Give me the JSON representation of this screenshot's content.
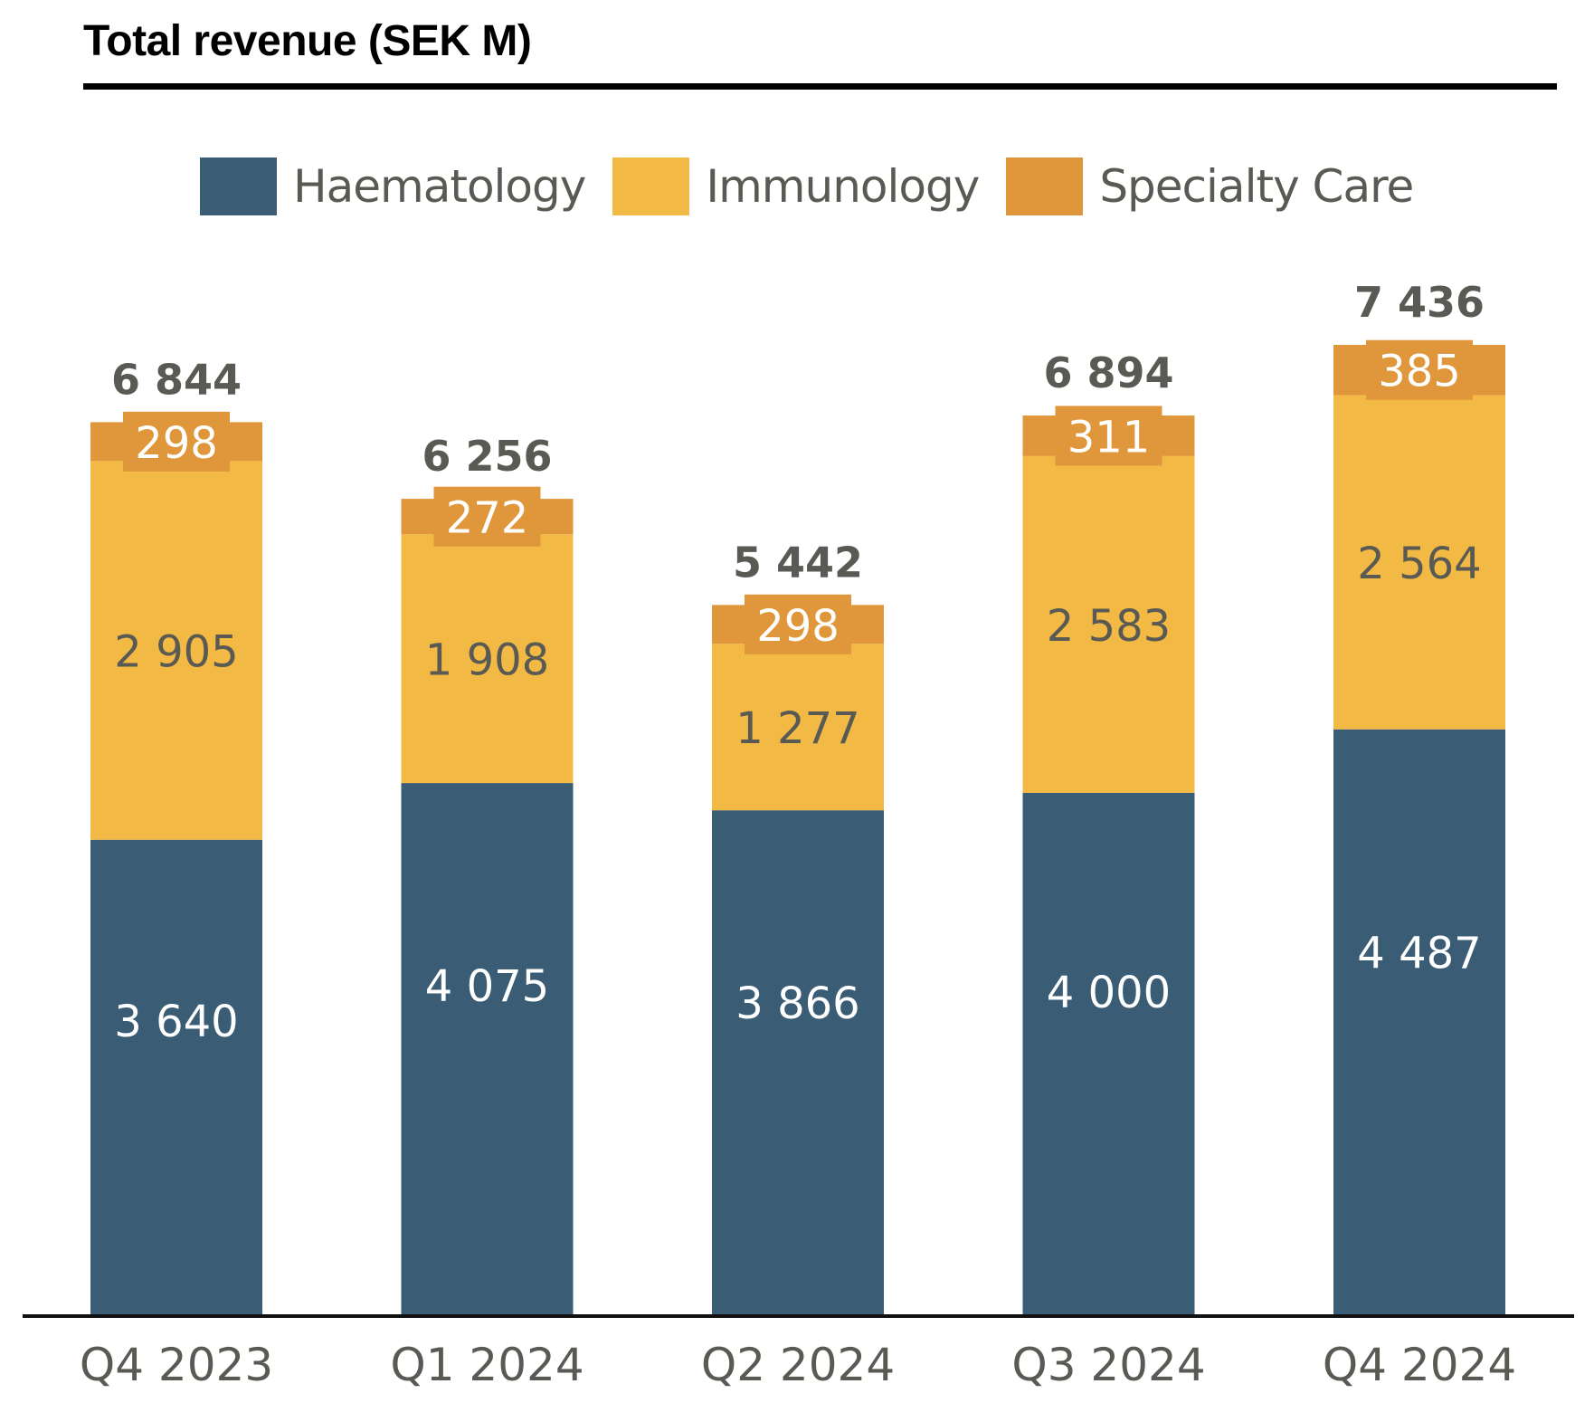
{
  "title": "Total revenue (SEK M)",
  "colors": {
    "haematology": "#3A5D75",
    "immunology": "#F2B944",
    "specialty_care": "#E0963A",
    "label_dark": "#5A5A55",
    "label_light": "#FFFFFF"
  },
  "legend": [
    {
      "label": "Haematology",
      "color": "#3A5D75"
    },
    {
      "label": "Immunology",
      "color": "#F2B944"
    },
    {
      "label": "Specialty Care",
      "color": "#E0963A"
    }
  ],
  "chart_data": {
    "type": "bar",
    "stacked": true,
    "title": "Total revenue (SEK M)",
    "xlabel": "",
    "ylabel": "",
    "categories": [
      "Q4 2023",
      "Q1 2024",
      "Q2 2024",
      "Q3 2024",
      "Q4 2024"
    ],
    "series": [
      {
        "name": "Haematology",
        "color": "#3A5D75",
        "values": [
          3640,
          4075,
          3866,
          4000,
          4487
        ],
        "labels": [
          "3 640",
          "4 075",
          "3 866",
          "4 000",
          "4 487"
        ]
      },
      {
        "name": "Immunology",
        "color": "#F2B944",
        "values": [
          2905,
          1908,
          1277,
          2583,
          2564
        ],
        "labels": [
          "2 905",
          "1 908",
          "1 277",
          "2 583",
          "2 564"
        ]
      },
      {
        "name": "Specialty Care",
        "color": "#E0963A",
        "values": [
          298,
          272,
          298,
          311,
          385
        ],
        "labels": [
          "298",
          "272",
          "298",
          "311",
          "385"
        ]
      }
    ],
    "totals": [
      6844,
      6256,
      5442,
      6894,
      7436
    ],
    "total_labels": [
      "6 844",
      "6 256",
      "5 442",
      "6 894",
      "7 436"
    ],
    "ylim": [
      0,
      7436
    ],
    "grid": false,
    "legend_position": "top"
  }
}
